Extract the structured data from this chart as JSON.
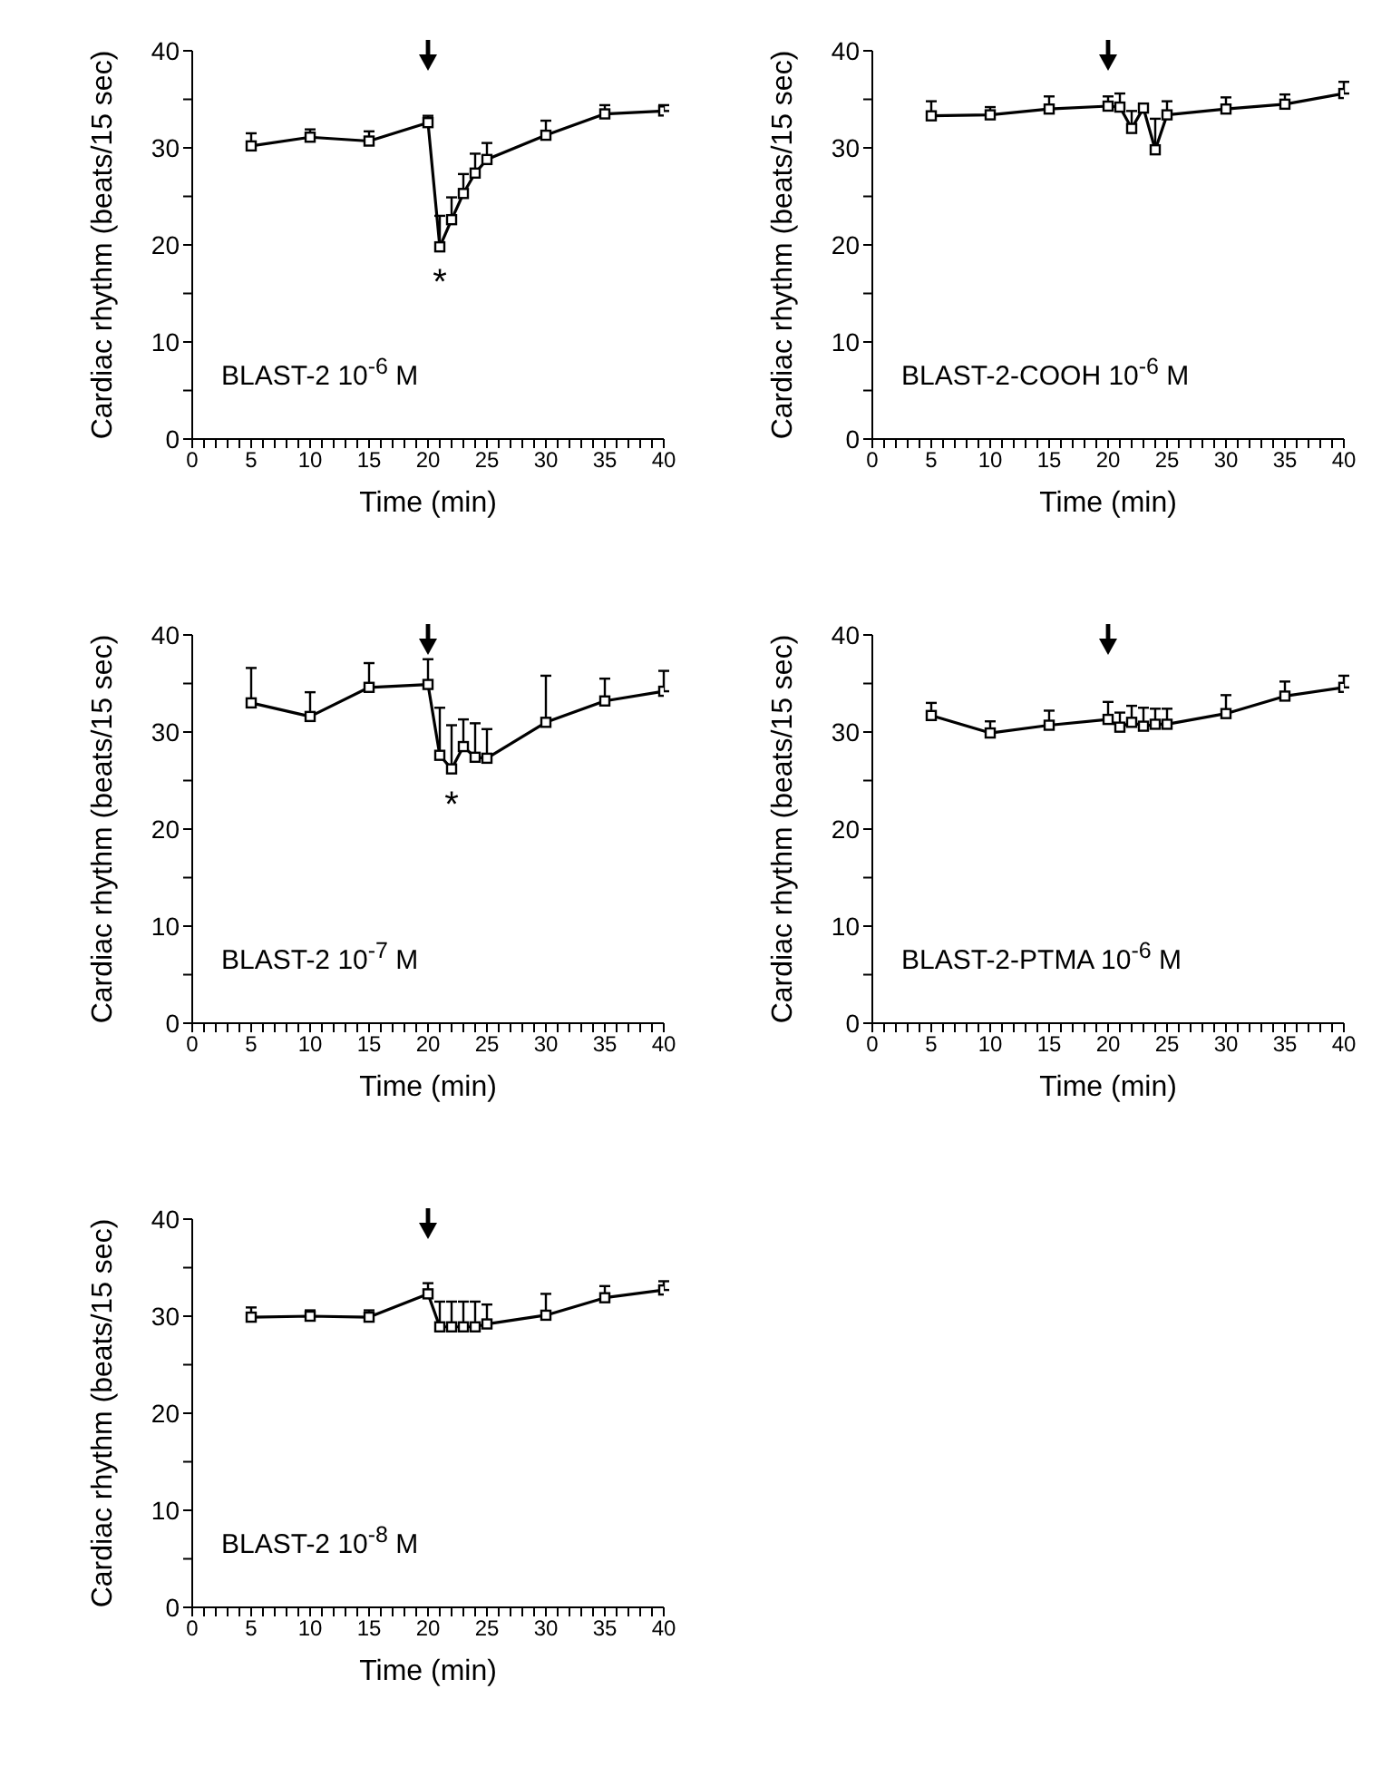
{
  "chart_data": [
    {
      "type": "line",
      "xlabel": "Time (min)",
      "ylabel": "Cardiac rhythm (beats/15 sec)",
      "marker": "square",
      "line_style": "solid",
      "grid": false,
      "legend": false,
      "xlim": [
        0,
        40
      ],
      "ylim": [
        0,
        40
      ],
      "xticks": [
        0,
        {
          "value": 1,
          "label": null
        },
        {
          "value": 2,
          "label": null
        },
        {
          "value": 3,
          "label": null
        },
        {
          "value": 4,
          "label": null
        },
        5,
        {
          "value": 6,
          "label": null
        },
        {
          "value": 7,
          "label": null
        },
        {
          "value": 8,
          "label": null
        },
        {
          "value": 9,
          "label": null
        },
        10,
        {
          "value": 11,
          "label": null
        },
        {
          "value": 12,
          "label": null
        },
        {
          "value": 13,
          "label": null
        },
        {
          "value": 14,
          "label": null
        },
        15,
        {
          "value": 16,
          "label": null
        },
        {
          "value": 17,
          "label": null
        },
        {
          "value": 18,
          "label": null
        },
        {
          "value": 19,
          "label": null
        },
        20,
        {
          "value": 21,
          "label": null
        },
        {
          "value": 22,
          "label": null
        },
        {
          "value": 23,
          "label": null
        },
        {
          "value": 24,
          "label": null
        },
        25,
        {
          "value": 26,
          "label": null
        },
        {
          "value": 27,
          "label": null
        },
        {
          "value": 28,
          "label": null
        },
        {
          "value": 29,
          "label": null
        },
        30,
        {
          "value": 31,
          "label": null
        },
        {
          "value": 32,
          "label": null
        },
        {
          "value": 33,
          "label": null
        },
        {
          "value": 34,
          "label": null
        },
        35,
        {
          "value": 36,
          "label": null
        },
        {
          "value": 37,
          "label": null
        },
        {
          "value": 38,
          "label": null
        },
        {
          "value": 39,
          "label": null
        },
        40
      ],
      "yticks": [
        0,
        {
          "value": 5,
          "label": null
        },
        10,
        {
          "value": 15,
          "label": null
        },
        20,
        {
          "value": 25,
          "label": null
        },
        30,
        {
          "value": 35,
          "label": null
        },
        40
      ],
      "x": [
        5,
        10,
        15,
        20,
        21,
        22,
        23,
        24,
        25,
        30,
        35,
        40
      ],
      "series": [
        {
          "color": "#000000",
          "values": [
            30.2,
            31.1,
            30.7,
            32.6,
            19.8,
            22.6,
            25.3,
            27.4,
            28.8,
            31.3,
            33.5,
            33.8
          ],
          "errors": [
            [
              30.2,
              31.5
            ],
            [
              31.1,
              31.9
            ],
            [
              30.7,
              31.7
            ],
            [
              32.6,
              33.3
            ],
            [
              19.8,
              23.0
            ],
            [
              22.6,
              24.9
            ],
            [
              25.3,
              27.3
            ],
            [
              27.4,
              29.4
            ],
            [
              28.8,
              30.5
            ],
            [
              31.3,
              32.8
            ],
            [
              33.5,
              34.4
            ],
            [
              33.8,
              34.4
            ]
          ]
        }
      ],
      "annotations": [
        "BLAST-2 10$^{-6}$ M",
        {
          "text": "*",
          "x": 21,
          "y": 19.8
        }
      ]
    },
    {
      "type": "line",
      "xlabel": "Time (min)",
      "ylabel": "Cardiac rhythm (beats/15 sec)",
      "marker": "square",
      "line_style": "solid",
      "grid": false,
      "legend": false,
      "xlim": [
        0,
        40
      ],
      "ylim": [
        0,
        40
      ],
      "xticks": [
        0,
        {
          "value": 1,
          "label": null
        },
        {
          "value": 2,
          "label": null
        },
        {
          "value": 3,
          "label": null
        },
        {
          "value": 4,
          "label": null
        },
        5,
        {
          "value": 6,
          "label": null
        },
        {
          "value": 7,
          "label": null
        },
        {
          "value": 8,
          "label": null
        },
        {
          "value": 9,
          "label": null
        },
        10,
        {
          "value": 11,
          "label": null
        },
        {
          "value": 12,
          "label": null
        },
        {
          "value": 13,
          "label": null
        },
        {
          "value": 14,
          "label": null
        },
        15,
        {
          "value": 16,
          "label": null
        },
        {
          "value": 17,
          "label": null
        },
        {
          "value": 18,
          "label": null
        },
        {
          "value": 19,
          "label": null
        },
        20,
        {
          "value": 21,
          "label": null
        },
        {
          "value": 22,
          "label": null
        },
        {
          "value": 23,
          "label": null
        },
        {
          "value": 24,
          "label": null
        },
        25,
        {
          "value": 26,
          "label": null
        },
        {
          "value": 27,
          "label": null
        },
        {
          "value": 28,
          "label": null
        },
        {
          "value": 29,
          "label": null
        },
        30,
        {
          "value": 31,
          "label": null
        },
        {
          "value": 32,
          "label": null
        },
        {
          "value": 33,
          "label": null
        },
        {
          "value": 34,
          "label": null
        },
        35,
        {
          "value": 36,
          "label": null
        },
        {
          "value": 37,
          "label": null
        },
        {
          "value": 38,
          "label": null
        },
        {
          "value": 39,
          "label": null
        },
        40
      ],
      "yticks": [
        0,
        {
          "value": 5,
          "label": null
        },
        10,
        {
          "value": 15,
          "label": null
        },
        20,
        {
          "value": 25,
          "label": null
        },
        30,
        {
          "value": 35,
          "label": null
        },
        40
      ],
      "x": [
        5,
        10,
        15,
        20,
        21,
        22,
        23,
        24,
        25,
        30,
        35,
        40
      ],
      "series": [
        {
          "color": "#000000",
          "values": [
            33.3,
            33.4,
            34.0,
            34.3,
            34.2,
            32.0,
            34.1,
            29.8,
            33.4,
            34.0,
            34.5,
            35.6
          ],
          "errors": [
            [
              33.3,
              34.8
            ],
            [
              33.4,
              34.2
            ],
            [
              34.0,
              35.3
            ],
            [
              34.3,
              35.3
            ],
            [
              34.2,
              35.6
            ],
            [
              32.0,
              33.8
            ],
            [
              34.1,
              34.5
            ],
            [
              29.8,
              33.0
            ],
            [
              33.4,
              34.8
            ],
            [
              34.0,
              35.2
            ],
            [
              34.5,
              35.5
            ],
            [
              35.6,
              36.8
            ]
          ]
        }
      ],
      "annotations": [
        "BLAST-2-COOH 10$^{-6}$ M"
      ]
    },
    {
      "type": "line",
      "xlabel": "Time (min)",
      "ylabel": "Cardiac rhythm (beats/15 sec)",
      "marker": "square",
      "line_style": "solid",
      "grid": false,
      "legend": false,
      "xlim": [
        0,
        40
      ],
      "ylim": [
        0,
        40
      ],
      "xticks": [
        0,
        {
          "value": 1,
          "label": null
        },
        {
          "value": 2,
          "label": null
        },
        {
          "value": 3,
          "label": null
        },
        {
          "value": 4,
          "label": null
        },
        5,
        {
          "value": 6,
          "label": null
        },
        {
          "value": 7,
          "label": null
        },
        {
          "value": 8,
          "label": null
        },
        {
          "value": 9,
          "label": null
        },
        10,
        {
          "value": 11,
          "label": null
        },
        {
          "value": 12,
          "label": null
        },
        {
          "value": 13,
          "label": null
        },
        {
          "value": 14,
          "label": null
        },
        15,
        {
          "value": 16,
          "label": null
        },
        {
          "value": 17,
          "label": null
        },
        {
          "value": 18,
          "label": null
        },
        {
          "value": 19,
          "label": null
        },
        20,
        {
          "value": 21,
          "label": null
        },
        {
          "value": 22,
          "label": null
        },
        {
          "value": 23,
          "label": null
        },
        {
          "value": 24,
          "label": null
        },
        25,
        {
          "value": 26,
          "label": null
        },
        {
          "value": 27,
          "label": null
        },
        {
          "value": 28,
          "label": null
        },
        {
          "value": 29,
          "label": null
        },
        30,
        {
          "value": 31,
          "label": null
        },
        {
          "value": 32,
          "label": null
        },
        {
          "value": 33,
          "label": null
        },
        {
          "value": 34,
          "label": null
        },
        35,
        {
          "value": 36,
          "label": null
        },
        {
          "value": 37,
          "label": null
        },
        {
          "value": 38,
          "label": null
        },
        {
          "value": 39,
          "label": null
        },
        40
      ],
      "yticks": [
        0,
        {
          "value": 5,
          "label": null
        },
        10,
        {
          "value": 15,
          "label": null
        },
        20,
        {
          "value": 25,
          "label": null
        },
        30,
        {
          "value": 35,
          "label": null
        },
        40
      ],
      "x": [
        5,
        10,
        15,
        20,
        21,
        22,
        23,
        24,
        25,
        30,
        35,
        40
      ],
      "series": [
        {
          "color": "#000000",
          "values": [
            33.0,
            31.6,
            34.6,
            34.9,
            27.6,
            26.2,
            28.5,
            27.4,
            27.3,
            31.0,
            33.2,
            34.2
          ],
          "errors": [
            [
              33.0,
              36.6
            ],
            [
              31.6,
              34.1
            ],
            [
              34.6,
              37.1
            ],
            [
              34.9,
              37.5
            ],
            [
              27.6,
              32.5
            ],
            [
              26.2,
              30.7
            ],
            [
              28.5,
              31.3
            ],
            [
              27.4,
              30.9
            ],
            [
              27.3,
              30.3
            ],
            [
              31.0,
              35.8
            ],
            [
              33.2,
              35.5
            ],
            [
              34.2,
              36.3
            ]
          ]
        }
      ],
      "annotations": [
        "BLAST-2 10$^{-7}$ M",
        {
          "text": "*",
          "x": 22,
          "y": 26.2
        }
      ]
    },
    {
      "type": "line",
      "xlabel": "Time (min)",
      "ylabel": "Cardiac rhythm (beats/15 sec)",
      "marker": "square",
      "line_style": "solid",
      "grid": false,
      "legend": false,
      "xlim": [
        0,
        40
      ],
      "ylim": [
        0,
        40
      ],
      "xticks": [
        0,
        {
          "value": 1,
          "label": null
        },
        {
          "value": 2,
          "label": null
        },
        {
          "value": 3,
          "label": null
        },
        {
          "value": 4,
          "label": null
        },
        5,
        {
          "value": 6,
          "label": null
        },
        {
          "value": 7,
          "label": null
        },
        {
          "value": 8,
          "label": null
        },
        {
          "value": 9,
          "label": null
        },
        10,
        {
          "value": 11,
          "label": null
        },
        {
          "value": 12,
          "label": null
        },
        {
          "value": 13,
          "label": null
        },
        {
          "value": 14,
          "label": null
        },
        15,
        {
          "value": 16,
          "label": null
        },
        {
          "value": 17,
          "label": null
        },
        {
          "value": 18,
          "label": null
        },
        {
          "value": 19,
          "label": null
        },
        20,
        {
          "value": 21,
          "label": null
        },
        {
          "value": 22,
          "label": null
        },
        {
          "value": 23,
          "label": null
        },
        {
          "value": 24,
          "label": null
        },
        25,
        {
          "value": 26,
          "label": null
        },
        {
          "value": 27,
          "label": null
        },
        {
          "value": 28,
          "label": null
        },
        {
          "value": 29,
          "label": null
        },
        30,
        {
          "value": 31,
          "label": null
        },
        {
          "value": 32,
          "label": null
        },
        {
          "value": 33,
          "label": null
        },
        {
          "value": 34,
          "label": null
        },
        35,
        {
          "value": 36,
          "label": null
        },
        {
          "value": 37,
          "label": null
        },
        {
          "value": 38,
          "label": null
        },
        {
          "value": 39,
          "label": null
        },
        40
      ],
      "yticks": [
        0,
        {
          "value": 5,
          "label": null
        },
        10,
        {
          "value": 15,
          "label": null
        },
        20,
        {
          "value": 25,
          "label": null
        },
        30,
        {
          "value": 35,
          "label": null
        },
        40
      ],
      "x": [
        5,
        10,
        15,
        20,
        21,
        22,
        23,
        24,
        25,
        30,
        35,
        40
      ],
      "series": [
        {
          "color": "#000000",
          "values": [
            31.7,
            29.9,
            30.7,
            31.3,
            30.5,
            31.0,
            30.6,
            30.8,
            30.8,
            31.9,
            33.7,
            34.6
          ],
          "errors": [
            [
              31.7,
              33.0
            ],
            [
              29.9,
              31.1
            ],
            [
              30.7,
              32.2
            ],
            [
              31.3,
              33.1
            ],
            [
              30.5,
              32.0
            ],
            [
              31.0,
              32.7
            ],
            [
              30.6,
              32.5
            ],
            [
              30.8,
              32.4
            ],
            [
              30.8,
              32.4
            ],
            [
              31.9,
              33.8
            ],
            [
              33.7,
              35.2
            ],
            [
              34.6,
              35.8
            ]
          ]
        }
      ],
      "annotations": [
        "BLAST-2-PTMA 10$^{-6}$ M"
      ]
    },
    {
      "type": "line",
      "xlabel": "Time (min)",
      "ylabel": "Cardiac rhythm (beats/15 sec)",
      "marker": "square",
      "line_style": "solid",
      "grid": false,
      "legend": false,
      "xlim": [
        0,
        40
      ],
      "ylim": [
        0,
        40
      ],
      "xticks": [
        0,
        {
          "value": 1,
          "label": null
        },
        {
          "value": 2,
          "label": null
        },
        {
          "value": 3,
          "label": null
        },
        {
          "value": 4,
          "label": null
        },
        5,
        {
          "value": 6,
          "label": null
        },
        {
          "value": 7,
          "label": null
        },
        {
          "value": 8,
          "label": null
        },
        {
          "value": 9,
          "label": null
        },
        10,
        {
          "value": 11,
          "label": null
        },
        {
          "value": 12,
          "label": null
        },
        {
          "value": 13,
          "label": null
        },
        {
          "value": 14,
          "label": null
        },
        15,
        {
          "value": 16,
          "label": null
        },
        {
          "value": 17,
          "label": null
        },
        {
          "value": 18,
          "label": null
        },
        {
          "value": 19,
          "label": null
        },
        20,
        {
          "value": 21,
          "label": null
        },
        {
          "value": 22,
          "label": null
        },
        {
          "value": 23,
          "label": null
        },
        {
          "value": 24,
          "label": null
        },
        25,
        {
          "value": 26,
          "label": null
        },
        {
          "value": 27,
          "label": null
        },
        {
          "value": 28,
          "label": null
        },
        {
          "value": 29,
          "label": null
        },
        30,
        {
          "value": 31,
          "label": null
        },
        {
          "value": 32,
          "label": null
        },
        {
          "value": 33,
          "label": null
        },
        {
          "value": 34,
          "label": null
        },
        35,
        {
          "value": 36,
          "label": null
        },
        {
          "value": 37,
          "label": null
        },
        {
          "value": 38,
          "label": null
        },
        {
          "value": 39,
          "label": null
        },
        40
      ],
      "yticks": [
        0,
        {
          "value": 5,
          "label": null
        },
        10,
        {
          "value": 15,
          "label": null
        },
        20,
        {
          "value": 25,
          "label": null
        },
        30,
        {
          "value": 35,
          "label": null
        },
        40
      ],
      "x": [
        5,
        10,
        15,
        20,
        21,
        22,
        23,
        24,
        25,
        30,
        35,
        40
      ],
      "series": [
        {
          "color": "#000000",
          "values": [
            29.9,
            30.0,
            29.9,
            32.3,
            28.9,
            28.9,
            28.9,
            28.9,
            29.2,
            30.1,
            31.9,
            32.7
          ],
          "errors": [
            [
              29.9,
              30.9
            ],
            [
              30.0,
              30.6
            ],
            [
              29.9,
              30.6
            ],
            [
              32.3,
              33.4
            ],
            [
              28.9,
              31.5
            ],
            [
              28.9,
              31.5
            ],
            [
              28.9,
              31.5
            ],
            [
              28.9,
              31.5
            ],
            [
              29.2,
              31.2
            ],
            [
              30.1,
              32.3
            ],
            [
              31.9,
              33.1
            ],
            [
              32.7,
              33.6
            ]
          ]
        }
      ],
      "annotations": [
        "BLAST-2 10$^{-8}$ M"
      ]
    }
  ]
}
